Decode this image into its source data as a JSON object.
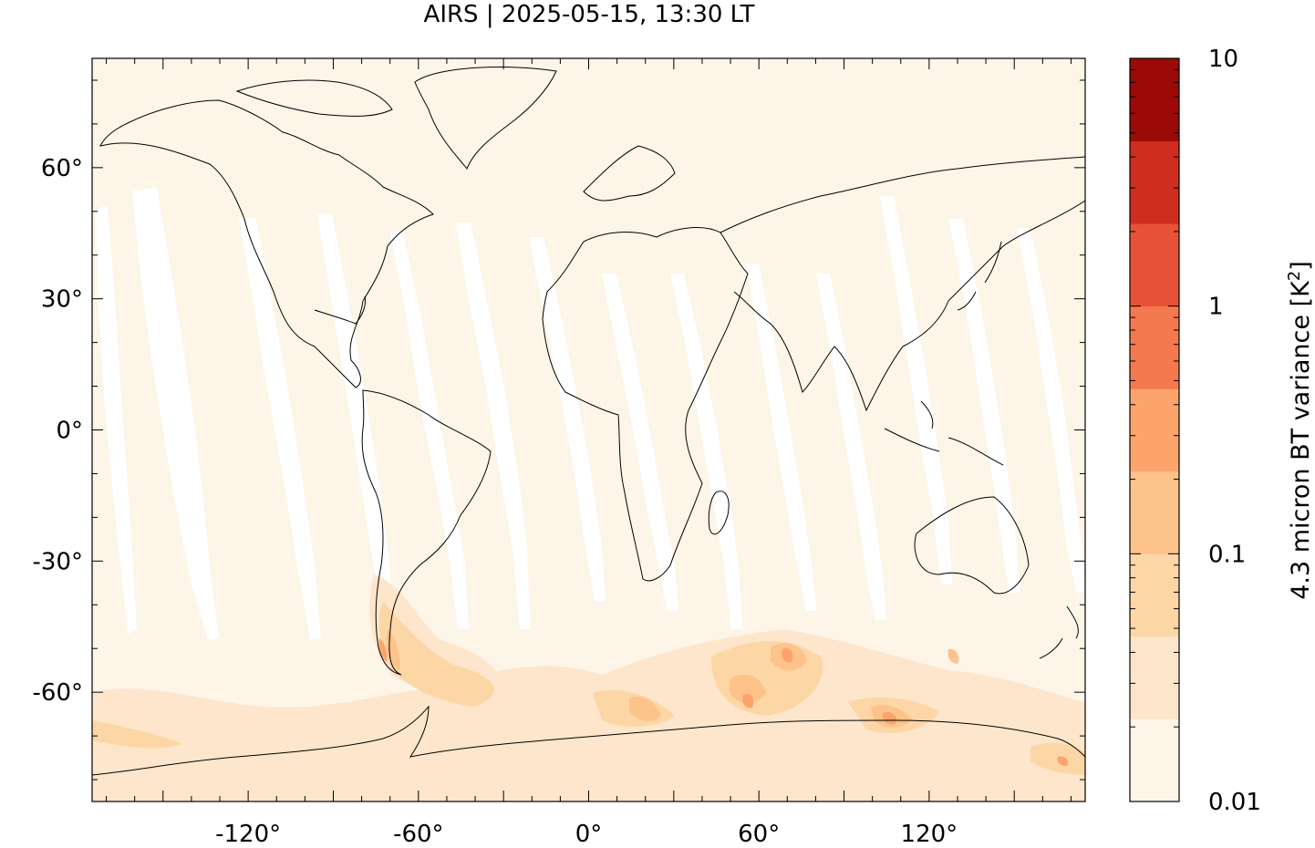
{
  "title": "AIRS | 2025-05-15, 13:30 LT",
  "map": {
    "projection": "equirectangular",
    "lon_range": [
      -175,
      175
    ],
    "lat_range": [
      -85,
      85
    ],
    "y_ticks": [
      {
        "value": 60,
        "label": "60°"
      },
      {
        "value": 30,
        "label": "30°"
      },
      {
        "value": 0,
        "label": "0°"
      },
      {
        "value": -30,
        "label": "-30°"
      },
      {
        "value": -60,
        "label": "-60°"
      }
    ],
    "x_ticks": [
      {
        "value": -120,
        "label": "-120°"
      },
      {
        "value": -60,
        "label": "-60°"
      },
      {
        "value": 0,
        "label": "0°"
      },
      {
        "value": 60,
        "label": "60°"
      },
      {
        "value": 120,
        "label": "120°"
      }
    ],
    "background_color": "#fef5e9"
  },
  "colorbar": {
    "label": "4.3 micron BT variance [K²]",
    "label_base": "4.3 micron BT variance [K",
    "label_sup": "2",
    "label_end": "]",
    "scale": "log",
    "range": [
      0.01,
      10
    ],
    "ticks": [
      {
        "value": 10,
        "label": "10"
      },
      {
        "value": 1,
        "label": "1"
      },
      {
        "value": 0.1,
        "label": "0.1"
      },
      {
        "value": 0.01,
        "label": "0.01"
      }
    ],
    "colors": [
      "#fef5e9",
      "#fde6cb",
      "#fdd6a6",
      "#fdc38a",
      "#fca46c",
      "#f4794e",
      "#e75236",
      "#cf2e1f",
      "#9b0a06"
    ]
  }
}
